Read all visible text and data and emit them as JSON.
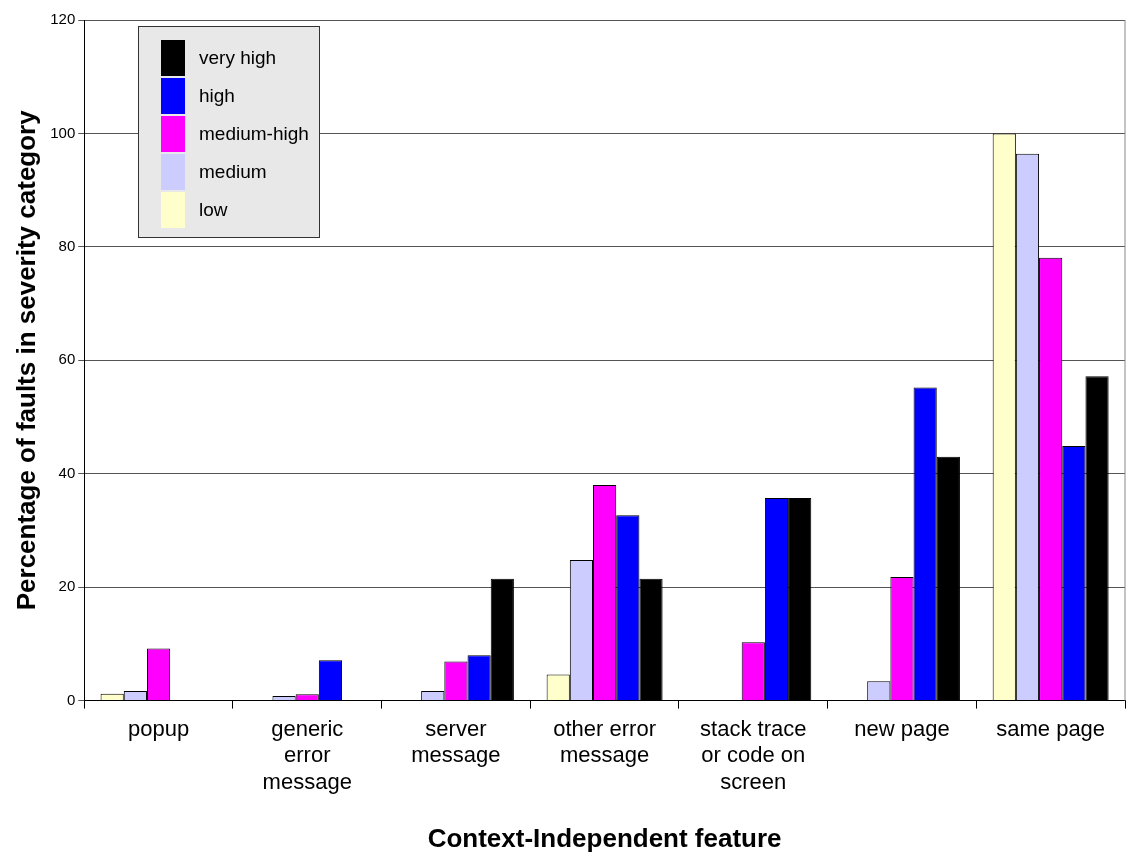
{
  "chart_data": {
    "type": "bar",
    "xlabel": "Context-Independent feature",
    "ylabel": "Percentage of faults in severity category",
    "categories": [
      "popup",
      "generic error message",
      "server message",
      "other error message",
      "stack trace or code on screen",
      "new page",
      "same page"
    ],
    "series": [
      {
        "name": "low",
        "color": "#ffffcc",
        "values": [
          1.2,
          0,
          0,
          4.6,
          0,
          0,
          100
        ]
      },
      {
        "name": "medium",
        "color": "#ccccff",
        "values": [
          1.7,
          0.8,
          1.7,
          24.8,
          0,
          3.4,
          96.4
        ]
      },
      {
        "name": "medium-high",
        "color": "#ff00ff",
        "values": [
          9.2,
          1.1,
          6.9,
          38,
          10.3,
          21.8,
          78.1
        ]
      },
      {
        "name": "high",
        "color": "#0000ff",
        "values": [
          0,
          7.1,
          8,
          32.7,
          35.7,
          55.2,
          44.9
        ]
      },
      {
        "name": "very high",
        "color": "#000000",
        "values": [
          0,
          0,
          21.5,
          21.5,
          35.7,
          43,
          57.2
        ]
      }
    ],
    "ylim": [
      0,
      120
    ],
    "yticks": [
      0,
      20,
      40,
      60,
      80,
      100,
      120
    ],
    "grid": "y",
    "legend": "top left"
  }
}
